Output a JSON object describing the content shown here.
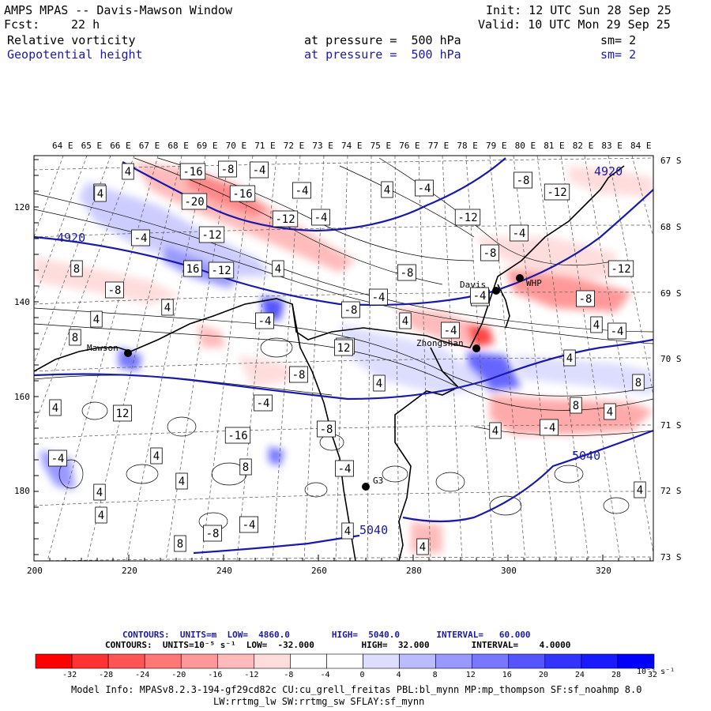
{
  "header": {
    "title": "AMPS MPAS -- Davis-Mawson Window",
    "init": "Init: 12 UTC Sun 28 Sep 25",
    "fcst_label": "Fcst:",
    "fcst_value": "22 h",
    "valid": "Valid: 10 UTC Mon 29 Sep 25",
    "field1_name": "Relative vorticity",
    "field1_level": "at pressure =  500 hPa",
    "field1_sm": "sm= 2",
    "field2_name": "Geopotential height",
    "field2_level": "at pressure =  500 hPa",
    "field2_sm": "sm= 2"
  },
  "axes": {
    "top_lon_labels": [
      "64 E",
      "65 E",
      "66 E",
      "67 E",
      "68 E",
      "69 E",
      "70 E",
      "71 E",
      "72 E",
      "73 E",
      "74 E",
      "75 E",
      "76 E",
      "77 E",
      "78 E",
      "79 E",
      "80 E",
      "81 E",
      "82 E",
      "83 E",
      "84 E"
    ],
    "right_lat_labels": [
      "67 S",
      "68 S",
      "69 S",
      "70 S",
      "71 S",
      "72 S",
      "73 S"
    ],
    "left_grid_labels": [
      "120",
      "140",
      "160",
      "180"
    ],
    "bottom_grid_labels": [
      "200",
      "220",
      "240",
      "260",
      "280",
      "300",
      "320"
    ]
  },
  "stations": [
    {
      "name": "Davis"
    },
    {
      "name": "WHP"
    },
    {
      "name": "Zhongshan"
    },
    {
      "name": "Mawson"
    },
    {
      "name": "G3"
    }
  ],
  "height_contour_labels": [
    "4920",
    "4920",
    "5040",
    "5040"
  ],
  "vorticity_labels": [
    "4",
    "-16",
    "-8",
    "-4",
    "4",
    "-20",
    "-16",
    "-4",
    "-12",
    "-4",
    "4",
    "-12",
    "-4",
    "-4",
    "-12",
    "8",
    "-4",
    "-8",
    "4",
    "4",
    "-8",
    "16",
    "-12",
    "12",
    "-4",
    "-8",
    "-4",
    "4",
    "-4",
    "-8",
    "-12",
    "-8",
    "-4",
    "4",
    "8",
    "-8",
    "4",
    "-4",
    "12",
    "8",
    "4",
    "-8",
    "4",
    "-4",
    "4",
    "12",
    "8",
    "-4",
    "-16",
    "4",
    "-8",
    "-12",
    "4",
    "-4",
    "4",
    "8",
    "-4",
    "4",
    "4",
    "4",
    "-8",
    "4",
    "-4",
    "4",
    "4",
    "8",
    "-4",
    "4"
  ],
  "contours_info": {
    "line1": "CONTOURS:  UNITS=m  LOW=  4860.0        HIGH=  5040.0       INTERVAL=   60.000",
    "line2": "CONTOURS:  UNITS=10⁻⁵ s⁻¹  LOW=  -32.000         HIGH=  32.000        INTERVAL=    4.0000"
  },
  "colorbar": {
    "tick_labels": [
      "-32",
      "-28",
      "-24",
      "-20",
      "-16",
      "-12",
      "-8",
      "-4",
      "0",
      "4",
      "8",
      "12",
      "16",
      "20",
      "24",
      "28",
      "32"
    ],
    "units": "10⁻⁵ s⁻¹",
    "colors": [
      "#ff0000",
      "#ff3333",
      "#ff5555",
      "#ff7777",
      "#ff9999",
      "#ffbbbb",
      "#ffdddd",
      "#ffffff",
      "#ffffff",
      "#ddddff",
      "#bbbbff",
      "#9999ff",
      "#7777ff",
      "#5555ff",
      "#3333ff",
      "#1a1aff",
      "#0000ff"
    ]
  },
  "model_info": {
    "line1": "Model Info: MPASv8.2.3-194-gf29cd82c CU:cu_grell_freitas PBL:bl_mynn MP:mp_thompson SF:sf_noahmp 8.0",
    "line2": "LW:rrtmg_lw SW:rrtmg_sw SFLAY:sf_mynn"
  }
}
